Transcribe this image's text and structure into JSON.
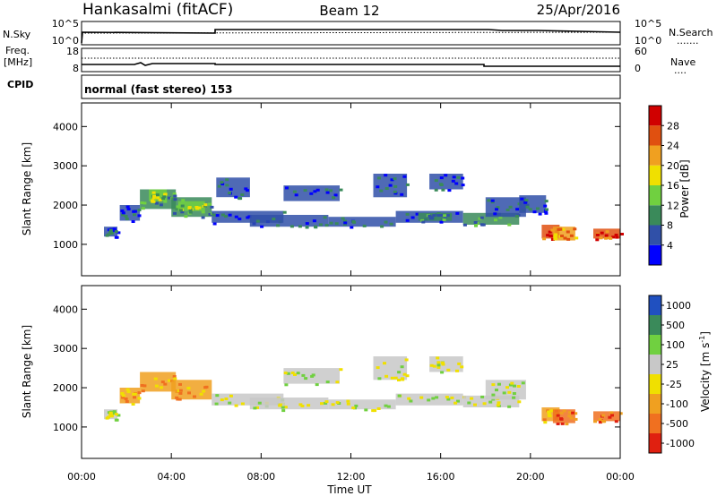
{
  "header": {
    "station": "Hankasalmi (fitACF)",
    "beam": "Beam 12",
    "date": "25/Apr/2016"
  },
  "noise_panel": {
    "left_label": "N.Sky",
    "left_ticks": [
      "10^5",
      "10^0"
    ],
    "right_label": "N.Search",
    "right_ticks": [
      "10^5",
      "10^0"
    ],
    "legend_dotted": "......."
  },
  "freq_panel": {
    "left_label_1": "Freq.",
    "left_label_2": "[MHz]",
    "left_ticks": [
      "18",
      "8"
    ],
    "right_label": "Nave",
    "right_ticks": [
      "60",
      "0"
    ],
    "legend_dotted": "....",
    "cpid_label": "CPID"
  },
  "cpid_panel": {
    "text": "normal (fast stereo) 153"
  },
  "axes": {
    "xlabel": "Time UT",
    "ylabel": "Slant Range [km]",
    "x_ticks": [
      "00:00",
      "04:00",
      "08:00",
      "12:00",
      "16:00",
      "20:00",
      "00:00"
    ],
    "y_ticks": [
      "1000",
      "2000",
      "3000",
      "4000"
    ]
  },
  "power_colorbar": {
    "label": "Power [dB]",
    "ticks": [
      "4",
      "8",
      "12",
      "16",
      "20",
      "24",
      "28"
    ],
    "colors": [
      "#0000ff",
      "#3050a8",
      "#3a8a5a",
      "#70d040",
      "#f0e000",
      "#f0a020",
      "#e05010",
      "#d00000"
    ]
  },
  "velocity_colorbar": {
    "label": "Velocity [m s",
    "label_sup": "-1",
    "label_close": "]",
    "ticks": [
      "1000",
      "500",
      "100",
      "25",
      "-25",
      "-100",
      "-500",
      "-1000"
    ],
    "colors": [
      "#2050c0",
      "#3a8a5a",
      "#70d040",
      "#c8c8c8",
      "#f0e000",
      "#f0a020",
      "#f07020",
      "#e02010"
    ]
  },
  "chart_data": {
    "type": "heatmap",
    "x_range_hours": [
      0,
      24
    ],
    "y_range_km": [
      200,
      4600
    ],
    "power_regions": [
      {
        "t0": 1.0,
        "t1": 1.6,
        "r0": 1200,
        "r1": 1450,
        "c": 1
      },
      {
        "t0": 1.7,
        "t1": 2.6,
        "r0": 1600,
        "r1": 2000,
        "c": 1
      },
      {
        "t0": 2.6,
        "t1": 4.2,
        "r0": 1900,
        "r1": 2400,
        "c": 2
      },
      {
        "t0": 3.0,
        "t1": 3.8,
        "r0": 2100,
        "r1": 2400,
        "c": 3
      },
      {
        "t0": 4.0,
        "t1": 5.8,
        "r0": 1700,
        "r1": 2200,
        "c": 2
      },
      {
        "t0": 4.3,
        "t1": 5.5,
        "r0": 1850,
        "r1": 2100,
        "c": 3
      },
      {
        "t0": 5.8,
        "t1": 9.0,
        "r0": 1550,
        "r1": 1850,
        "c": 1
      },
      {
        "t0": 6.0,
        "t1": 7.5,
        "r0": 2200,
        "r1": 2700,
        "c": 1
      },
      {
        "t0": 7.5,
        "t1": 11.0,
        "r0": 1450,
        "r1": 1750,
        "c": 1
      },
      {
        "t0": 9.0,
        "t1": 11.5,
        "r0": 2100,
        "r1": 2500,
        "c": 1
      },
      {
        "t0": 11.0,
        "t1": 14.0,
        "r0": 1450,
        "r1": 1700,
        "c": 1
      },
      {
        "t0": 13.0,
        "t1": 14.5,
        "r0": 2200,
        "r1": 2800,
        "c": 1
      },
      {
        "t0": 14.0,
        "t1": 17.0,
        "r0": 1550,
        "r1": 1850,
        "c": 1
      },
      {
        "t0": 15.0,
        "t1": 16.5,
        "r0": 1600,
        "r1": 1800,
        "c": 2
      },
      {
        "t0": 15.5,
        "t1": 17.0,
        "r0": 2400,
        "r1": 2800,
        "c": 1
      },
      {
        "t0": 17.0,
        "t1": 19.5,
        "r0": 1500,
        "r1": 1800,
        "c": 2
      },
      {
        "t0": 18.0,
        "t1": 19.8,
        "r0": 1700,
        "r1": 2200,
        "c": 1
      },
      {
        "t0": 19.5,
        "t1": 20.7,
        "r0": 1800,
        "r1": 2250,
        "c": 1
      },
      {
        "t0": 20.5,
        "t1": 21.3,
        "r0": 1150,
        "r1": 1500,
        "c": 6
      },
      {
        "t0": 21.0,
        "t1": 22.0,
        "r0": 1100,
        "r1": 1450,
        "c": 5
      },
      {
        "t0": 22.8,
        "t1": 24.0,
        "r0": 1150,
        "r1": 1400,
        "c": 6
      }
    ],
    "velocity_regions": [
      {
        "t0": 1.0,
        "t1": 1.6,
        "r0": 1200,
        "r1": 1450,
        "c": 3
      },
      {
        "t0": 1.7,
        "t1": 2.6,
        "r0": 1600,
        "r1": 2000,
        "c": 5
      },
      {
        "t0": 2.6,
        "t1": 4.2,
        "r0": 1900,
        "r1": 2400,
        "c": 5
      },
      {
        "t0": 4.0,
        "t1": 5.8,
        "r0": 1700,
        "r1": 2200,
        "c": 5
      },
      {
        "t0": 5.8,
        "t1": 9.0,
        "r0": 1550,
        "r1": 1850,
        "c": 3
      },
      {
        "t0": 7.5,
        "t1": 11.0,
        "r0": 1450,
        "r1": 1750,
        "c": 3
      },
      {
        "t0": 9.0,
        "t1": 11.5,
        "r0": 2100,
        "r1": 2500,
        "c": 3
      },
      {
        "t0": 11.0,
        "t1": 14.0,
        "r0": 1450,
        "r1": 1700,
        "c": 3
      },
      {
        "t0": 13.0,
        "t1": 14.5,
        "r0": 2200,
        "r1": 2800,
        "c": 3
      },
      {
        "t0": 14.0,
        "t1": 17.0,
        "r0": 1550,
        "r1": 1850,
        "c": 3
      },
      {
        "t0": 15.5,
        "t1": 17.0,
        "r0": 2400,
        "r1": 2800,
        "c": 3
      },
      {
        "t0": 17.0,
        "t1": 19.5,
        "r0": 1500,
        "r1": 1800,
        "c": 3
      },
      {
        "t0": 18.0,
        "t1": 19.8,
        "r0": 1700,
        "r1": 2200,
        "c": 3
      },
      {
        "t0": 20.5,
        "t1": 21.3,
        "r0": 1150,
        "r1": 1500,
        "c": 5
      },
      {
        "t0": 21.0,
        "t1": 22.0,
        "r0": 1100,
        "r1": 1450,
        "c": 6
      },
      {
        "t0": 22.8,
        "t1": 24.0,
        "r0": 1150,
        "r1": 1400,
        "c": 6
      }
    ]
  }
}
